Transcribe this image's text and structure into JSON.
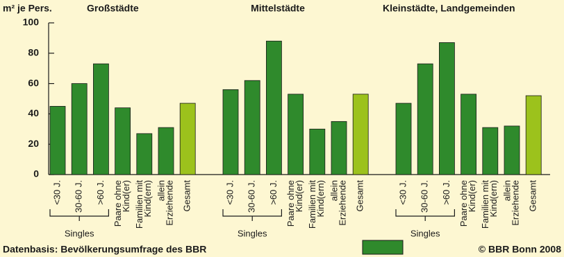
{
  "chart_data": {
    "type": "bar",
    "y_label": "m² je Pers.",
    "categories": [
      [
        "<30 J."
      ],
      [
        "30-60 J."
      ],
      [
        ">60 J."
      ],
      [
        "Paare ohne",
        "Kind(er)"
      ],
      [
        "Familien mit",
        "Kind(ern)"
      ],
      [
        "allein",
        "Erziehende"
      ],
      [
        "Gesamt"
      ]
    ],
    "colors": [
      "#2f8a2c",
      "#2f8a2c",
      "#2f8a2c",
      "#2f8a2c",
      "#2f8a2c",
      "#2f8a2c",
      "#9cc21c"
    ],
    "bracket_label": "Singles",
    "groups": [
      {
        "name": "Großstädte",
        "values": [
          45,
          60,
          73,
          44,
          27,
          31,
          47
        ]
      },
      {
        "name": "Mittelstädte",
        "values": [
          56,
          62,
          88,
          53,
          30,
          35,
          53
        ]
      },
      {
        "name": "Kleinstädte, Landgemeinden",
        "values": [
          47,
          73,
          87,
          53,
          31,
          32,
          52
        ]
      }
    ],
    "ylim": [
      0,
      100
    ],
    "yticks": [
      0,
      20,
      40,
      60,
      80,
      100
    ],
    "grid": false,
    "source": "Datenbasis: Bevölkerungsumfrage des BBR",
    "copyright": "© BBR Bonn 2008"
  }
}
